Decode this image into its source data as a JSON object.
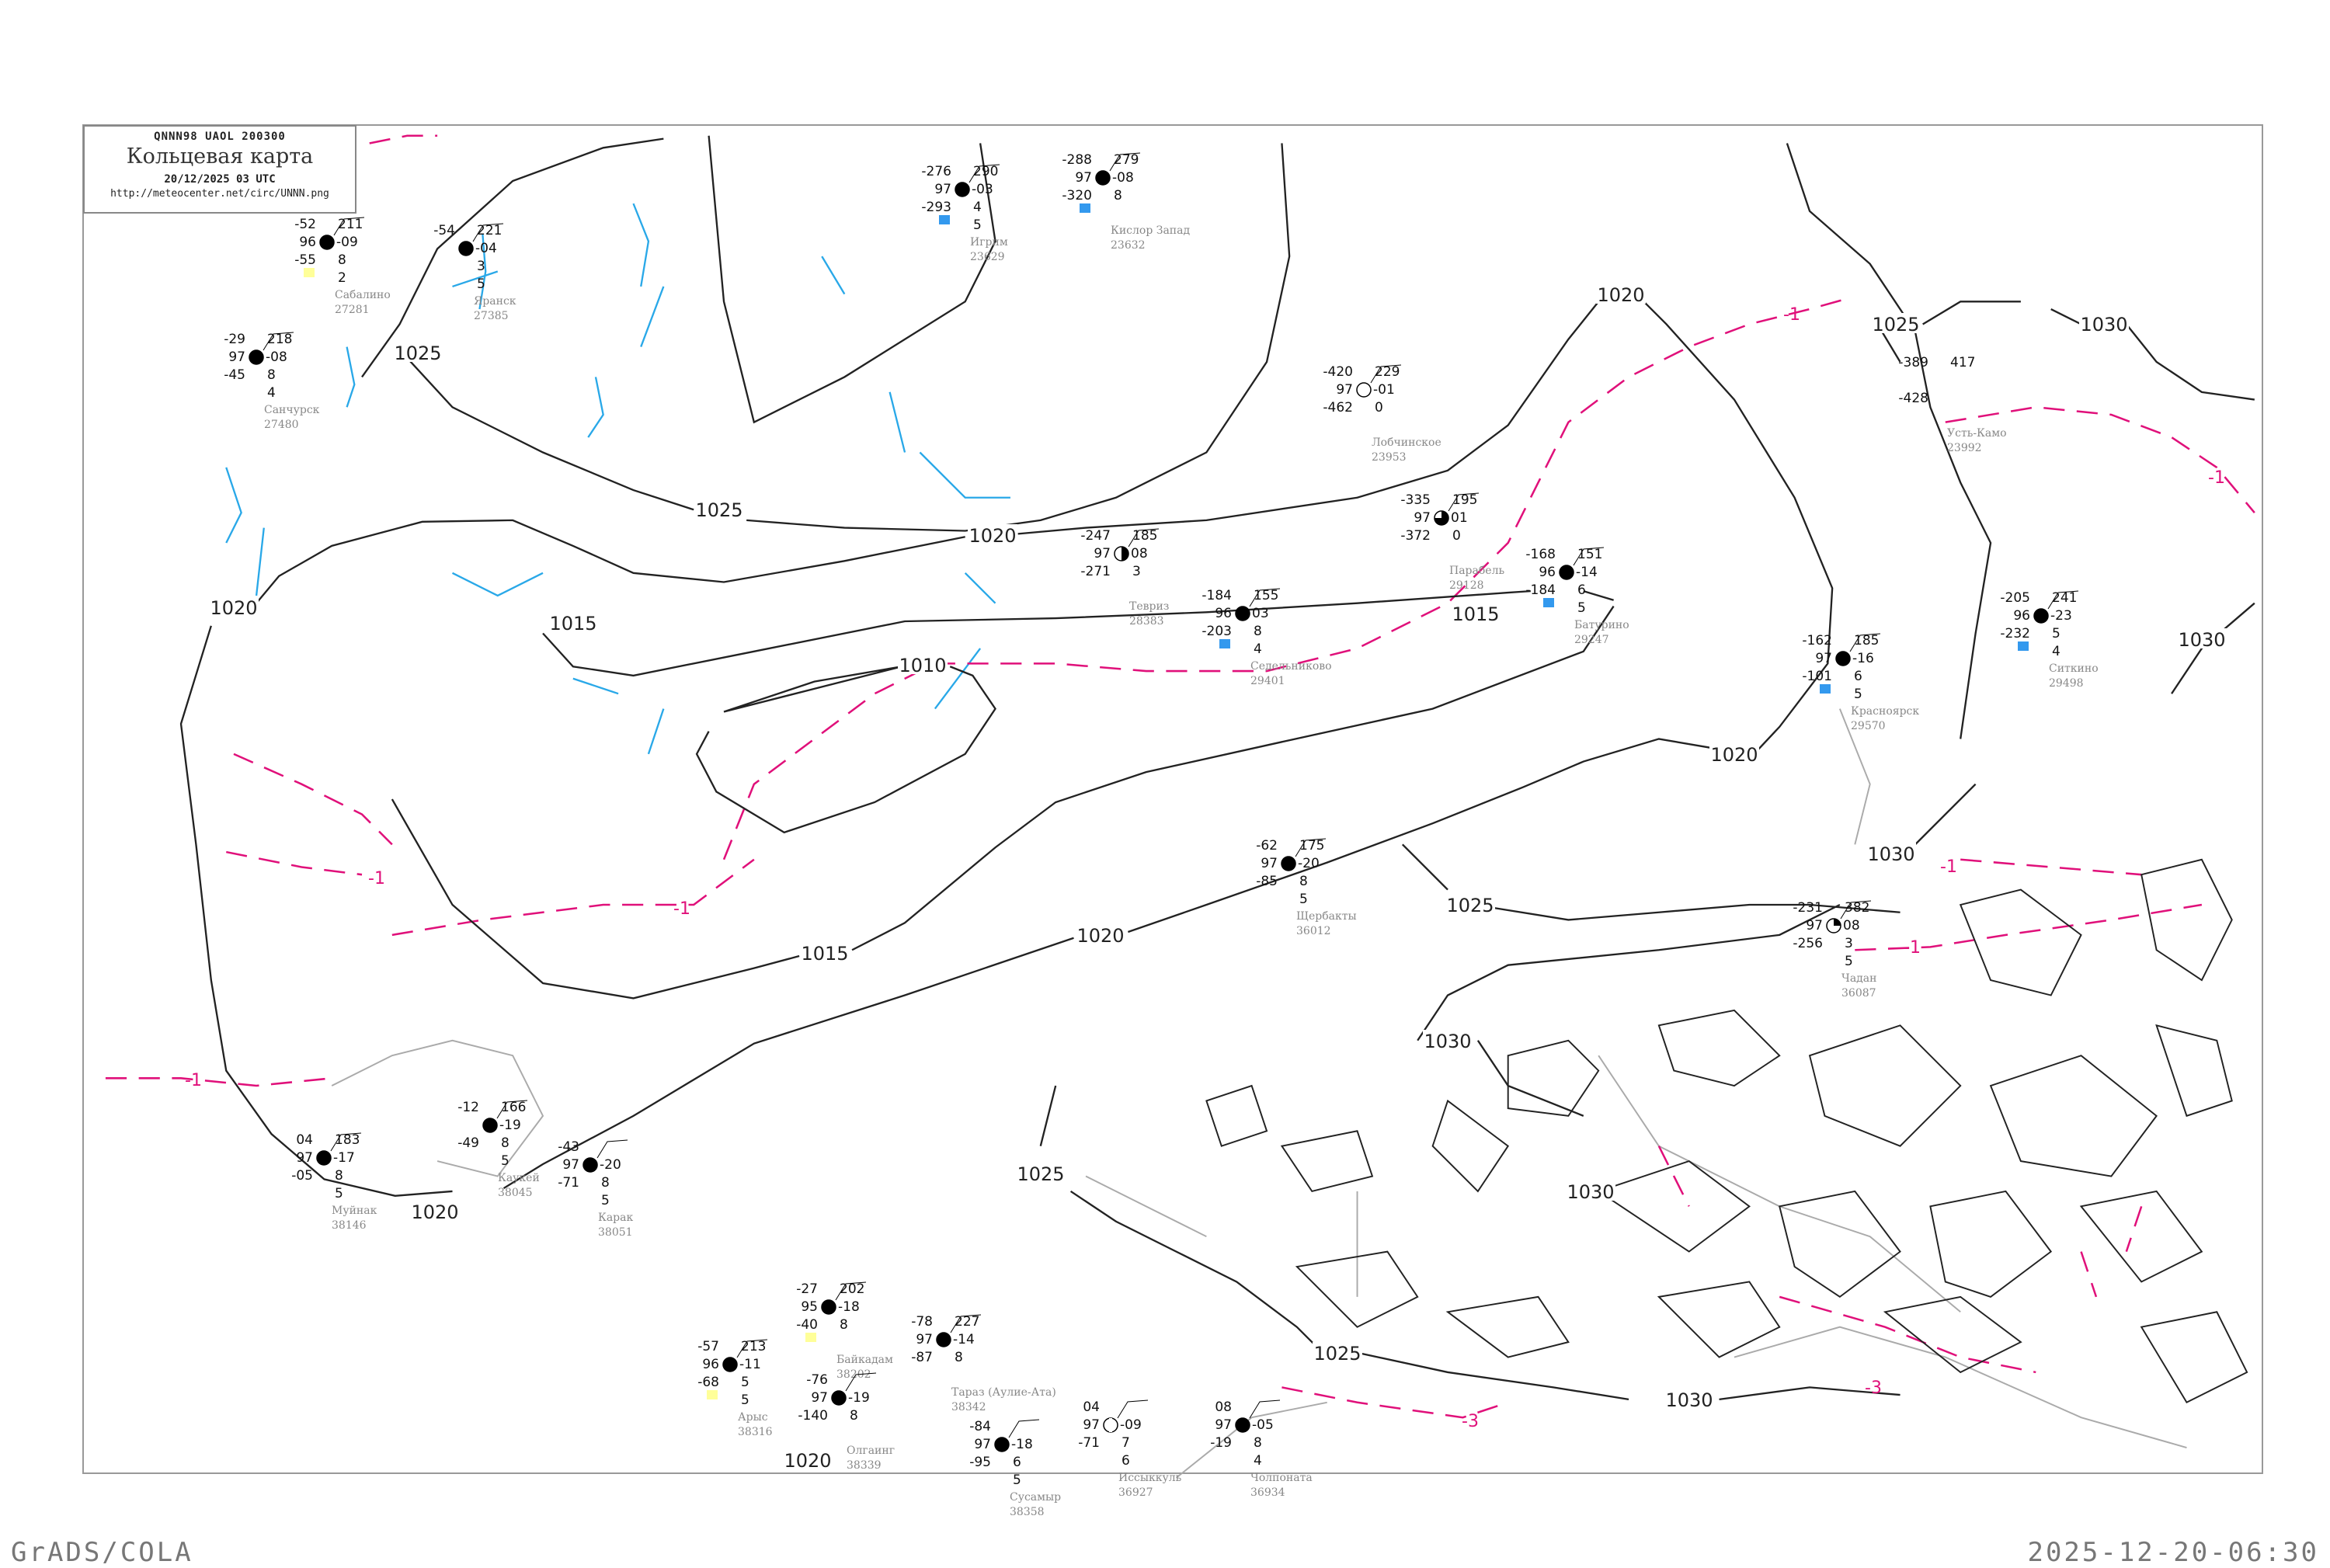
{
  "header": {
    "code_line": "QNNN98   UAOL   200300",
    "title": "Кольцевая карта",
    "datetime": "20/12/2025 03 UTC",
    "url": "http://meteocenter.net/circ/UNNN.png"
  },
  "footer": {
    "left": "GrADS/COLA",
    "right": "2025-12-20-06:30"
  },
  "colors": {
    "isobar": "#222222",
    "isotherm": "#e0107a",
    "river": "#29a8e8",
    "coast": "#aaaaaa",
    "station_marker": "#3399ee",
    "warning_marker": "#ffff99"
  },
  "isobar_labels": [
    "1025",
    "1025",
    "1020",
    "1020",
    "1015",
    "1010",
    "1015",
    "1020",
    "1020",
    "1020",
    "1020",
    "1025",
    "1030",
    "1015",
    "1025",
    "1025",
    "1030",
    "1030",
    "1030",
    "1025",
    "1020",
    "1030",
    "1030"
  ],
  "isotherm_labels": [
    "-1",
    "-1",
    "-1",
    "-1",
    "-1",
    "-1",
    "-1",
    "-3",
    "-3"
  ],
  "stations": [
    {
      "name": "Игрим",
      "id": "23629",
      "tl": "-276",
      "tr": "290",
      "ml": "97",
      "mr": "-03",
      "bl": "-293",
      "br": "4",
      "br2": "5",
      "sky": "full",
      "marker": "blue"
    },
    {
      "name": "Кислор Запад",
      "id": "23632",
      "tl": "-288",
      "tr": "279",
      "ml": "97",
      "mr": "-08",
      "bl": "-320",
      "br": "8",
      "br2": "",
      "sky": "full",
      "marker": "blue"
    },
    {
      "name": "Лобчинское",
      "id": "23953",
      "tl": "-420",
      "tr": "229",
      "ml": "97",
      "mr": "-01",
      "bl": "-462",
      "br": "0",
      "br2": "",
      "sky": "empty",
      "marker": ""
    },
    {
      "name": "Усть-Камо",
      "id": "23992",
      "tl": "-389",
      "tr": "417",
      "ml": "",
      "mr": "",
      "bl": "-428",
      "br": "",
      "br2": "",
      "sky": "none",
      "marker": ""
    },
    {
      "name": "Сабалино",
      "id": "27281",
      "tl": "-52",
      "tr": "211",
      "ml": "96",
      "mr": "-09",
      "bl": "-55",
      "br": "8",
      "br2": "2",
      "sky": "full",
      "marker": "yellow"
    },
    {
      "name": "Яранск",
      "id": "27385",
      "tl": "-54",
      "tr": "221",
      "ml": "",
      "mr": "-04",
      "bl": "",
      "br": "3",
      "br2": "5",
      "sky": "full",
      "marker": ""
    },
    {
      "name": "Санчурск",
      "id": "27480",
      "tl": "-29",
      "tr": "218",
      "ml": "97",
      "mr": "-08",
      "bl": "-45",
      "br": "8",
      "br2": "4",
      "sky": "full",
      "marker": ""
    },
    {
      "name": "Тевриз",
      "id": "28383",
      "tl": "-247",
      "tr": "185",
      "ml": "97",
      "mr": "08",
      "bl": "-271",
      "br": "3",
      "br2": "",
      "sky": "half",
      "marker": ""
    },
    {
      "name": "Седельниково",
      "id": "29401",
      "tl": "-184",
      "tr": "155",
      "ml": "96",
      "mr": "03",
      "bl": "-203",
      "br": "8",
      "br2": "4",
      "sky": "full",
      "marker": "blue"
    },
    {
      "name": "Парабель",
      "id": "29128",
      "tl": "-335",
      "tr": "195",
      "ml": "97",
      "mr": "01",
      "bl": "-372",
      "br": "0",
      "br2": "",
      "sky": "three",
      "marker": ""
    },
    {
      "name": "Батурино",
      "id": "29247",
      "tl": "-168",
      "tr": "151",
      "ml": "96",
      "mr": "-14",
      "bl": "-184",
      "br": "6",
      "br2": "5",
      "sky": "full",
      "marker": "blue"
    },
    {
      "name": "Ситкино",
      "id": "29498",
      "tl": "-205",
      "tr": "241",
      "ml": "96",
      "mr": "-23",
      "bl": "-232",
      "br": "5",
      "br2": "4",
      "sky": "full",
      "marker": "blue"
    },
    {
      "name": "Красноярск",
      "id": "29570",
      "tl": "-162",
      "tr": "185",
      "ml": "97",
      "mr": "-16",
      "bl": "-101",
      "br": "6",
      "br2": "5",
      "sky": "full",
      "marker": "blue"
    },
    {
      "name": "Щербакты",
      "id": "36012",
      "tl": "-62",
      "tr": "175",
      "ml": "97",
      "mr": "-20",
      "bl": "-85",
      "br": "8",
      "br2": "5",
      "sky": "full",
      "marker": ""
    },
    {
      "name": "Чадан",
      "id": "36087",
      "tl": "-231",
      "tr": "382",
      "ml": "97",
      "mr": "08",
      "bl": "-256",
      "br": "3",
      "br2": "5",
      "sky": "quarter",
      "marker": ""
    },
    {
      "name": "Муйнак",
      "id": "38146",
      "tl": "04",
      "tr": "183",
      "ml": "97",
      "mr": "-17",
      "bl": "-05",
      "br": "8",
      "br2": "5",
      "sky": "full",
      "marker": ""
    },
    {
      "name": "Каукей",
      "id": "38045",
      "tl": "-12",
      "tr": "166",
      "ml": "",
      "mr": "-19",
      "bl": "-49",
      "br": "8",
      "br2": "5",
      "sky": "full",
      "marker": ""
    },
    {
      "name": "Карак",
      "id": "38051",
      "tl": "-43",
      "tr": "",
      "ml": "97",
      "mr": "-20",
      "bl": "-71",
      "br": "8",
      "br2": "5",
      "sky": "full",
      "marker": ""
    },
    {
      "name": "Байкадам",
      "id": "38202",
      "tl": "-27",
      "tr": "202",
      "ml": "95",
      "mr": "-18",
      "bl": "-40",
      "br": "8",
      "br2": "",
      "sky": "full",
      "marker": "yellow"
    },
    {
      "name": "Арыс",
      "id": "38316",
      "tl": "-57",
      "tr": "213",
      "ml": "96",
      "mr": "-11",
      "bl": "-68",
      "br": "5",
      "br2": "5",
      "sky": "full",
      "marker": "yellow"
    },
    {
      "name": "Тараз (Аулие-Ата)",
      "id": "38342",
      "tl": "-78",
      "tr": "227",
      "ml": "97",
      "mr": "-14",
      "bl": "-87",
      "br": "8",
      "br2": "",
      "sky": "full",
      "marker": ""
    },
    {
      "name": "Олгаинг",
      "id": "38339",
      "tl": "-76",
      "tr": "",
      "ml": "97",
      "mr": "-19",
      "bl": "-140",
      "br": "8",
      "br2": "",
      "sky": "full",
      "marker": ""
    },
    {
      "name": "Сусамыр",
      "id": "38358",
      "tl": "-84",
      "tr": "",
      "ml": "97",
      "mr": "-18",
      "bl": "-95",
      "br": "6",
      "br2": "5",
      "sky": "full",
      "marker": ""
    },
    {
      "name": "Иссыккуль",
      "id": "36927",
      "tl": "04",
      "tr": "",
      "ml": "97",
      "mr": "-09",
      "bl": "-71",
      "br": "7",
      "br2": "6",
      "sky": "bar",
      "marker": ""
    },
    {
      "name": "Чолпоната",
      "id": "36934",
      "tl": "08",
      "tr": "",
      "ml": "97",
      "mr": "-05",
      "bl": "-19",
      "br": "8",
      "br2": "4",
      "sky": "full",
      "marker": ""
    }
  ]
}
